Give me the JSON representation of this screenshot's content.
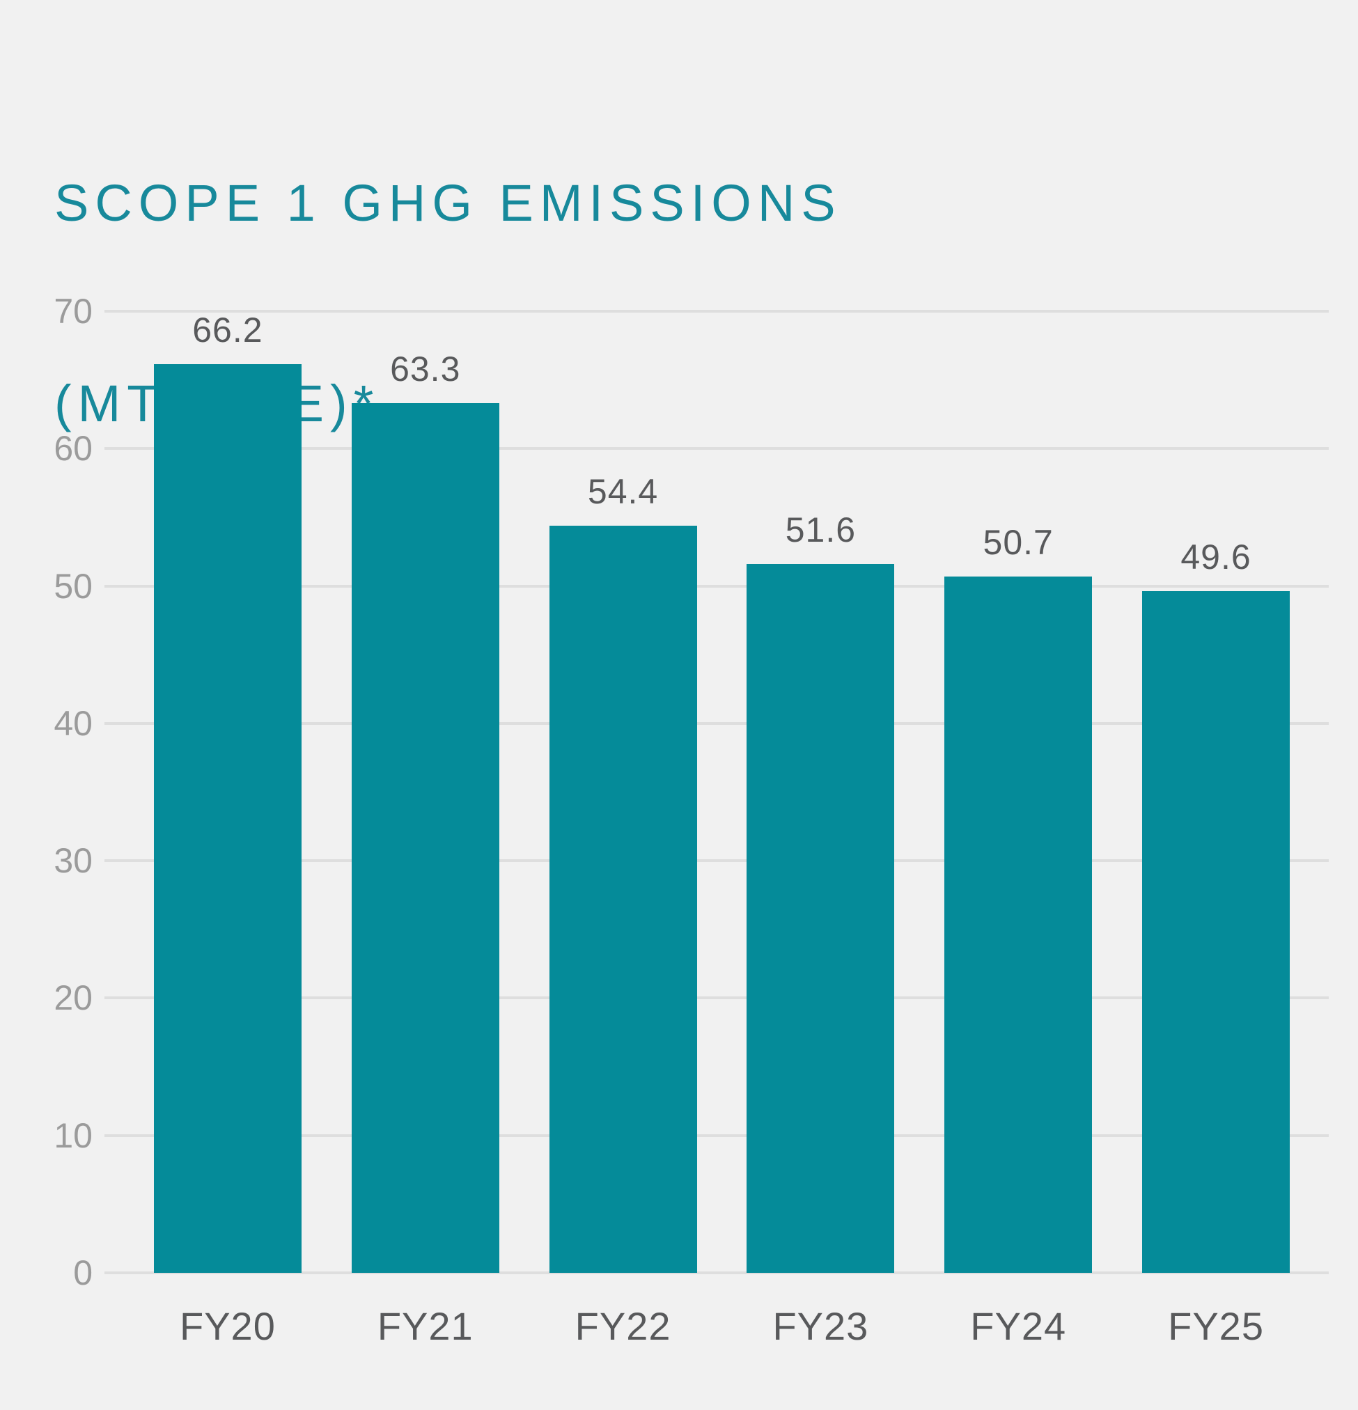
{
  "title": {
    "line1": "SCOPE 1 GHG EMISSIONS",
    "line2": "(MTCO2E)*"
  },
  "chart_data": {
    "type": "bar",
    "title": "SCOPE 1 GHG EMISSIONS (MTCO2E)*",
    "categories": [
      "FY20",
      "FY21",
      "FY22",
      "FY23",
      "FY24",
      "FY25"
    ],
    "values": [
      66.2,
      63.3,
      54.4,
      51.6,
      50.7,
      49.6
    ],
    "value_labels": [
      "66.2",
      "63.3",
      "54.4",
      "51.6",
      "50.7",
      "49.6"
    ],
    "xlabel": "",
    "ylabel": "",
    "ylim": [
      0,
      70
    ],
    "yticks": [
      0,
      10,
      20,
      30,
      40,
      50,
      60,
      70
    ],
    "grid": true,
    "legend": "none",
    "colors": {
      "bar": "#058B99",
      "title": "#17899B",
      "grid": "#DEDEDE",
      "axis_tick_text": "#9B9B9B",
      "value_text": "#58595B",
      "background": "#F1F1F1"
    }
  }
}
